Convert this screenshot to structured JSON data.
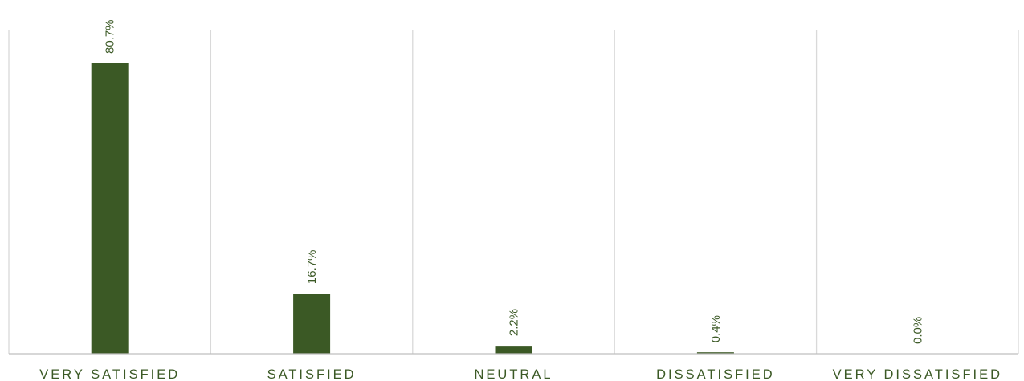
{
  "chart_data": {
    "type": "bar",
    "title": "",
    "xlabel": "",
    "ylabel": "",
    "categories": [
      "VERY SATISFIED",
      "SATISFIED",
      "NEUTRAL",
      "DISSATISFIED",
      "VERY DISSATISFIED"
    ],
    "values": [
      80.7,
      16.7,
      2.2,
      0.4,
      0.0
    ],
    "data_labels": [
      "80.7%",
      "16.7%",
      "2.2%",
      "0.4%",
      "0.0%"
    ],
    "ylim": [
      0,
      80.7
    ],
    "grid": "vertical-dividers",
    "legend": "none",
    "colors": {
      "bar": "#3b5925",
      "data_label": "#3b5925",
      "tick_label": "#3b5925",
      "gridline": "#d9d9d9",
      "axis": "#bfbfbf"
    }
  }
}
